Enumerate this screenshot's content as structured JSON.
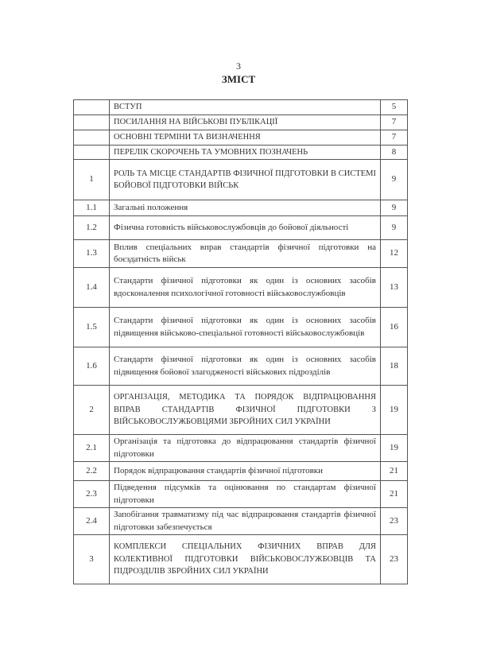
{
  "page_number": "3",
  "title": "ЗМІСТ",
  "toc": [
    {
      "num": "",
      "title": "ВСТУП",
      "page": "5",
      "upper": true
    },
    {
      "num": "",
      "title": "ПОСИЛАННЯ НА ВІЙСЬКОВІ ПУБЛІКАЦІЇ",
      "page": "7",
      "upper": true
    },
    {
      "num": "",
      "title": "ОСНОВНІ ТЕРМІНИ ТА ВИЗНАЧЕННЯ",
      "page": "7",
      "upper": true
    },
    {
      "num": "",
      "title": "ПЕРЕЛІК СКОРОЧЕНЬ ТА УМОВНИХ ПОЗНАЧЕНЬ",
      "page": "8",
      "upper": true
    },
    {
      "num": "1",
      "title": "РОЛЬ ТА МІСЦЕ СТАНДАРТІВ ФІЗИЧНОЇ ПІДГОТОВКИ В СИСТЕМІ БОЙОВОЇ ПІДГОТОВКИ ВІЙСЬК",
      "page": "9",
      "upper": true
    },
    {
      "num": "1.1",
      "title": "Загальні положення",
      "page": "9"
    },
    {
      "num": "1.2",
      "title": "Фізична готовність військовослужбовців до бойової діяльності",
      "page": "9"
    },
    {
      "num": "1.3",
      "title": "Вплив спеціальних вправ стандартів фізичної підготовки на боєздатність військ",
      "page": "12"
    },
    {
      "num": "1.4",
      "title": "Стандарти фізичної підготовки як один із основних засобів вдосконалення психологічної готовності військовослужбовців",
      "page": "13"
    },
    {
      "num": "1.5",
      "title": "Стандарти фізичної підготовки як один із основних засобів підвищення військово-спеціальної готовності військовослужбовців",
      "page": "16"
    },
    {
      "num": "1.6",
      "title": "Стандарти фізичної підготовки як один із основних засобів підвищення бойової злагодженості військових підрозділів",
      "page": "18"
    },
    {
      "num": "2",
      "title": "ОРГАНІЗАЦІЯ, МЕТОДИКА ТА ПОРЯДОК ВІДПРАЦЮВАННЯ ВПРАВ СТАНДАРТІВ ФІЗИЧНОЇ ПІДГОТОВКИ З ВІЙСЬКОВОСЛУЖБОВЦЯМИ ЗБРОЙНИХ СИЛ УКРАЇНИ",
      "page": "19",
      "upper": true
    },
    {
      "num": "2.1",
      "title": "Організація та підготовка до відпрацювання стандартів фізичної підготовки",
      "page": "19"
    },
    {
      "num": "2.2",
      "title": "Порядок відпрацювання стандартів фізичної підготовки",
      "page": "21"
    },
    {
      "num": "2.3",
      "title": "Підведення підсумків та оцінювання по стандартам фізичної підготовки",
      "page": "21"
    },
    {
      "num": "2.4",
      "title": "Запобігання травматизму під час відпрацювання стандартів фізичної підготовки забезпечується",
      "page": "23"
    },
    {
      "num": "3",
      "title": "КОМПЛЕКСИ СПЕЦІАЛЬНИХ ФІЗИЧНИХ ВПРАВ ДЛЯ КОЛЕКТИВНОЇ ПІДГОТОВКИ ВІЙСЬКОВОСЛУЖБОВЦІВ ТА ПІДРОЗДІЛІВ ЗБРОЙНИХ СИЛ УКРАЇНИ",
      "page": "23",
      "upper": true
    }
  ]
}
